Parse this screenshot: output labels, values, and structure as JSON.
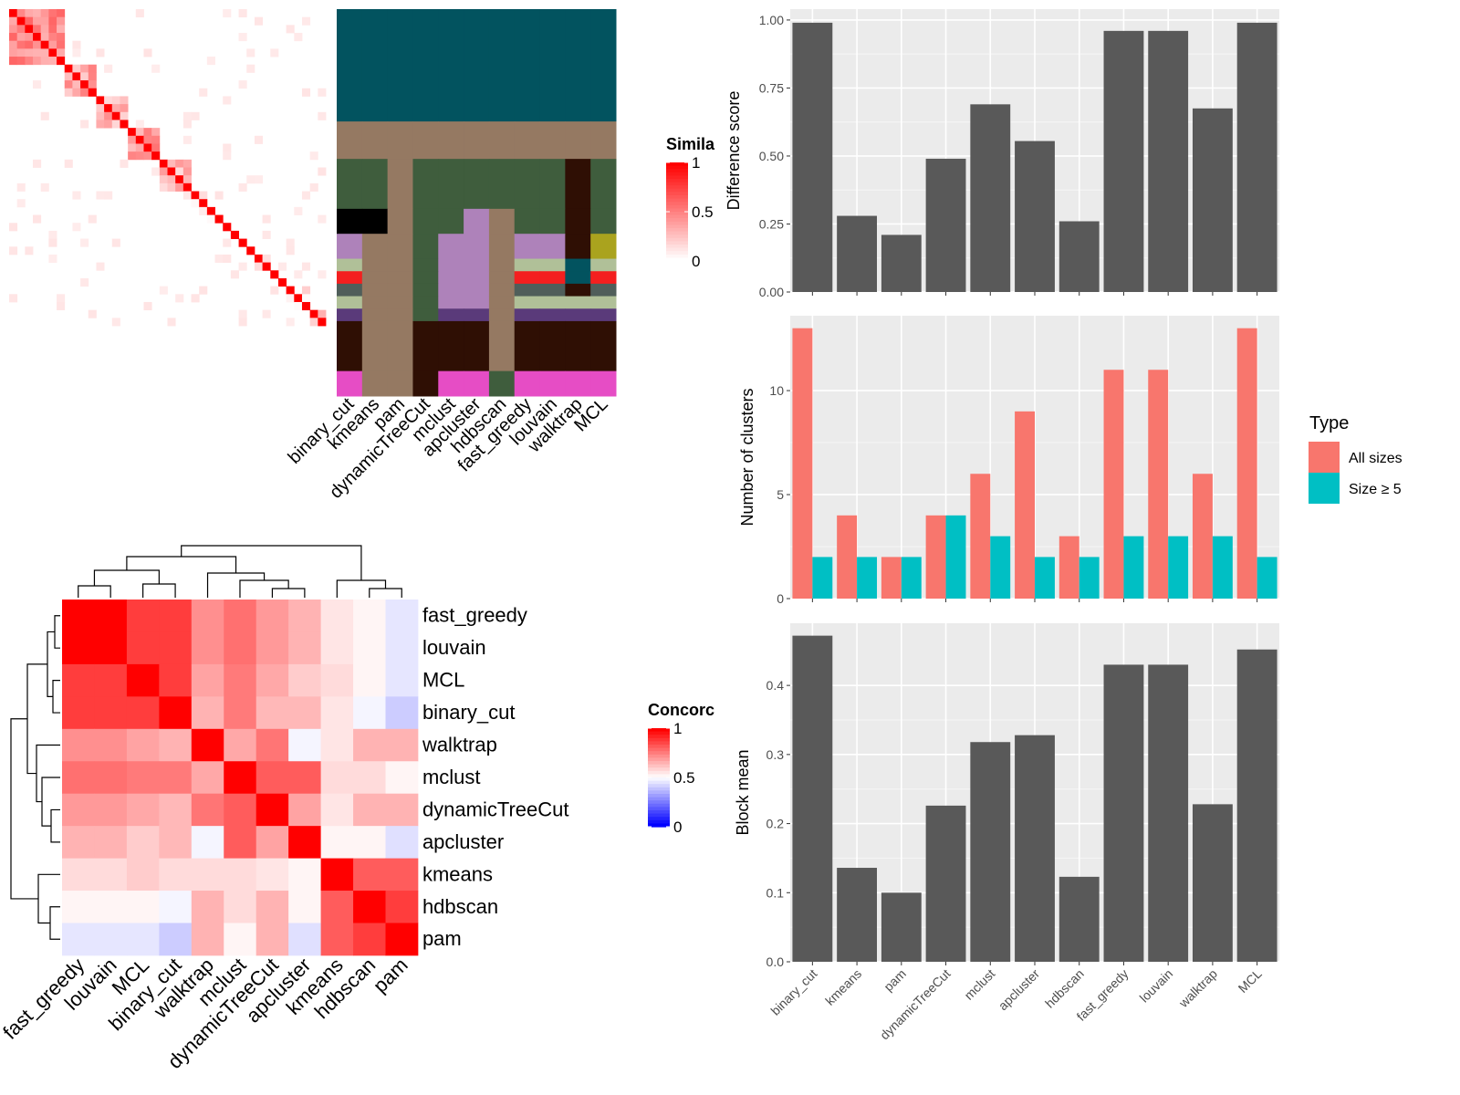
{
  "chart_data": [
    {
      "type": "heatmap",
      "name": "similarity",
      "legend": {
        "title": "Simila",
        "ticks": [
          "1",
          "0.5",
          "0"
        ],
        "range": [
          0,
          1
        ]
      },
      "blocks": [
        0.45,
        0.35,
        0.3,
        0.4,
        0.25,
        0.0,
        0.0,
        0.0,
        0.0,
        0.0,
        0.0,
        0.15,
        0.3
      ],
      "diag": 1.0
    },
    {
      "type": "heatmap",
      "name": "cluster-assignments",
      "methods": [
        "binary_cut",
        "kmeans",
        "pam",
        "dynamicTreeCut",
        "mclust",
        "apcluster",
        "hdbscan",
        "fast_greedy",
        "louvain",
        "walktrap",
        "MCL"
      ],
      "palette": [
        "#02535f",
        "#957962",
        "#aaa31e",
        "#3f5d3d",
        "#000000",
        "#ae82ba",
        "#b0c098",
        "#f41f1f",
        "#505e5a",
        "#5a3a7a",
        "#2f0f04",
        "#e64dc5"
      ],
      "row_groups": [
        {
          "rows": 9,
          "cols": [
            0,
            0,
            0,
            0,
            0,
            0,
            0,
            0,
            0,
            0,
            0
          ]
        },
        {
          "rows": 3,
          "cols": [
            1,
            1,
            1,
            1,
            1,
            1,
            1,
            1,
            1,
            1,
            1
          ]
        },
        {
          "rows": 4,
          "cols": [
            3,
            3,
            1,
            3,
            3,
            3,
            3,
            3,
            3,
            10,
            3
          ]
        },
        {
          "rows": 2,
          "cols": [
            4,
            4,
            1,
            3,
            3,
            5,
            1,
            3,
            3,
            10,
            3
          ]
        },
        {
          "rows": 2,
          "cols": [
            5,
            1,
            1,
            3,
            5,
            5,
            1,
            5,
            5,
            10,
            2
          ]
        },
        {
          "rows": 1,
          "cols": [
            6,
            1,
            1,
            3,
            5,
            5,
            1,
            6,
            6,
            0,
            6
          ]
        },
        {
          "rows": 1,
          "cols": [
            7,
            1,
            1,
            3,
            5,
            5,
            1,
            7,
            7,
            0,
            7
          ]
        },
        {
          "rows": 1,
          "cols": [
            8,
            1,
            1,
            3,
            5,
            5,
            1,
            8,
            8,
            10,
            8
          ]
        },
        {
          "rows": 1,
          "cols": [
            6,
            1,
            1,
            3,
            5,
            5,
            1,
            6,
            6,
            6,
            6
          ]
        },
        {
          "rows": 1,
          "cols": [
            9,
            1,
            1,
            3,
            9,
            9,
            1,
            9,
            9,
            9,
            9
          ]
        },
        {
          "rows": 4,
          "cols": [
            10,
            1,
            1,
            10,
            10,
            10,
            1,
            10,
            10,
            10,
            10
          ]
        },
        {
          "rows": 2,
          "cols": [
            11,
            1,
            1,
            10,
            11,
            11,
            3,
            11,
            11,
            11,
            11
          ]
        }
      ]
    },
    {
      "type": "heatmap",
      "name": "concordance",
      "rows": [
        "fast_greedy",
        "louvain",
        "MCL",
        "binary_cut",
        "walktrap",
        "mclust",
        "dynamicTreeCut",
        "apcluster",
        "kmeans",
        "hdbscan",
        "pam"
      ],
      "cols": [
        "fast_greedy",
        "louvain",
        "MCL",
        "binary_cut",
        "walktrap",
        "mclust",
        "dynamicTreeCut",
        "apcluster",
        "kmeans",
        "hdbscan",
        "pam"
      ],
      "legend": {
        "title": "Concorc",
        "ticks": [
          "1",
          "0.5",
          "0"
        ],
        "range": [
          0,
          1
        ]
      },
      "values": [
        [
          1.0,
          1.0,
          0.88,
          0.88,
          0.72,
          0.78,
          0.7,
          0.65,
          0.55,
          0.52,
          0.45
        ],
        [
          1.0,
          1.0,
          0.88,
          0.88,
          0.72,
          0.78,
          0.7,
          0.65,
          0.55,
          0.52,
          0.45
        ],
        [
          0.88,
          0.88,
          1.0,
          0.88,
          0.68,
          0.76,
          0.67,
          0.6,
          0.57,
          0.52,
          0.45
        ],
        [
          0.88,
          0.88,
          0.88,
          1.0,
          0.65,
          0.76,
          0.64,
          0.64,
          0.55,
          0.48,
          0.4
        ],
        [
          0.72,
          0.72,
          0.68,
          0.65,
          1.0,
          0.67,
          0.77,
          0.48,
          0.55,
          0.65,
          0.65
        ],
        [
          0.78,
          0.78,
          0.76,
          0.76,
          0.67,
          1.0,
          0.82,
          0.82,
          0.57,
          0.57,
          0.52
        ],
        [
          0.7,
          0.7,
          0.67,
          0.64,
          0.77,
          0.82,
          1.0,
          0.68,
          0.55,
          0.65,
          0.65
        ],
        [
          0.65,
          0.65,
          0.6,
          0.64,
          0.48,
          0.82,
          0.68,
          1.0,
          0.52,
          0.52,
          0.44
        ],
        [
          0.57,
          0.57,
          0.6,
          0.57,
          0.57,
          0.57,
          0.55,
          0.52,
          1.0,
          0.82,
          0.82
        ],
        [
          0.52,
          0.52,
          0.52,
          0.48,
          0.65,
          0.57,
          0.65,
          0.52,
          0.82,
          1.0,
          0.88
        ],
        [
          0.45,
          0.45,
          0.45,
          0.4,
          0.65,
          0.52,
          0.65,
          0.44,
          0.82,
          0.88,
          1.0
        ]
      ]
    },
    {
      "type": "bar",
      "categories": [
        "binary_cut",
        "kmeans",
        "pam",
        "dynamicTreeCut",
        "mclust",
        "apcluster",
        "hdbscan",
        "fast_greedy",
        "louvain",
        "walktrap",
        "MCL"
      ],
      "values": [
        0.99,
        0.28,
        0.21,
        0.49,
        0.69,
        0.555,
        0.26,
        0.96,
        0.96,
        0.675,
        0.99
      ],
      "ylabel": "Difference score",
      "ylim": [
        0,
        1.04
      ],
      "yticks": [
        "0.00",
        "0.25",
        "0.50",
        "0.75",
        "1.00"
      ],
      "grid": true
    },
    {
      "type": "bar",
      "categories": [
        "binary_cut",
        "kmeans",
        "pam",
        "dynamicTreeCut",
        "mclust",
        "apcluster",
        "hdbscan",
        "fast_greedy",
        "louvain",
        "walktrap",
        "MCL"
      ],
      "series": [
        {
          "name": "All sizes",
          "values": [
            13,
            4,
            2,
            4,
            6,
            9,
            3,
            11,
            11,
            6,
            13
          ]
        },
        {
          "name": "Size ≥ 5",
          "values": [
            2,
            2,
            2,
            4,
            3,
            2,
            2,
            3,
            3,
            3,
            2
          ]
        }
      ],
      "ylabel": "Number of clusters",
      "ylim": [
        0,
        13.6
      ],
      "yticks": [
        "0",
        "5",
        "10"
      ],
      "legend": {
        "title": "Type",
        "position": "right"
      },
      "grid": true
    },
    {
      "type": "bar",
      "categories": [
        "binary_cut",
        "kmeans",
        "pam",
        "dynamicTreeCut",
        "mclust",
        "apcluster",
        "hdbscan",
        "fast_greedy",
        "louvain",
        "walktrap",
        "MCL"
      ],
      "values": [
        0.472,
        0.136,
        0.1,
        0.226,
        0.318,
        0.328,
        0.123,
        0.43,
        0.43,
        0.228,
        0.452
      ],
      "ylabel": "Block mean",
      "ylim": [
        0,
        0.49
      ],
      "yticks": [
        "0.0",
        "0.1",
        "0.2",
        "0.3",
        "0.4"
      ],
      "grid": true
    }
  ]
}
